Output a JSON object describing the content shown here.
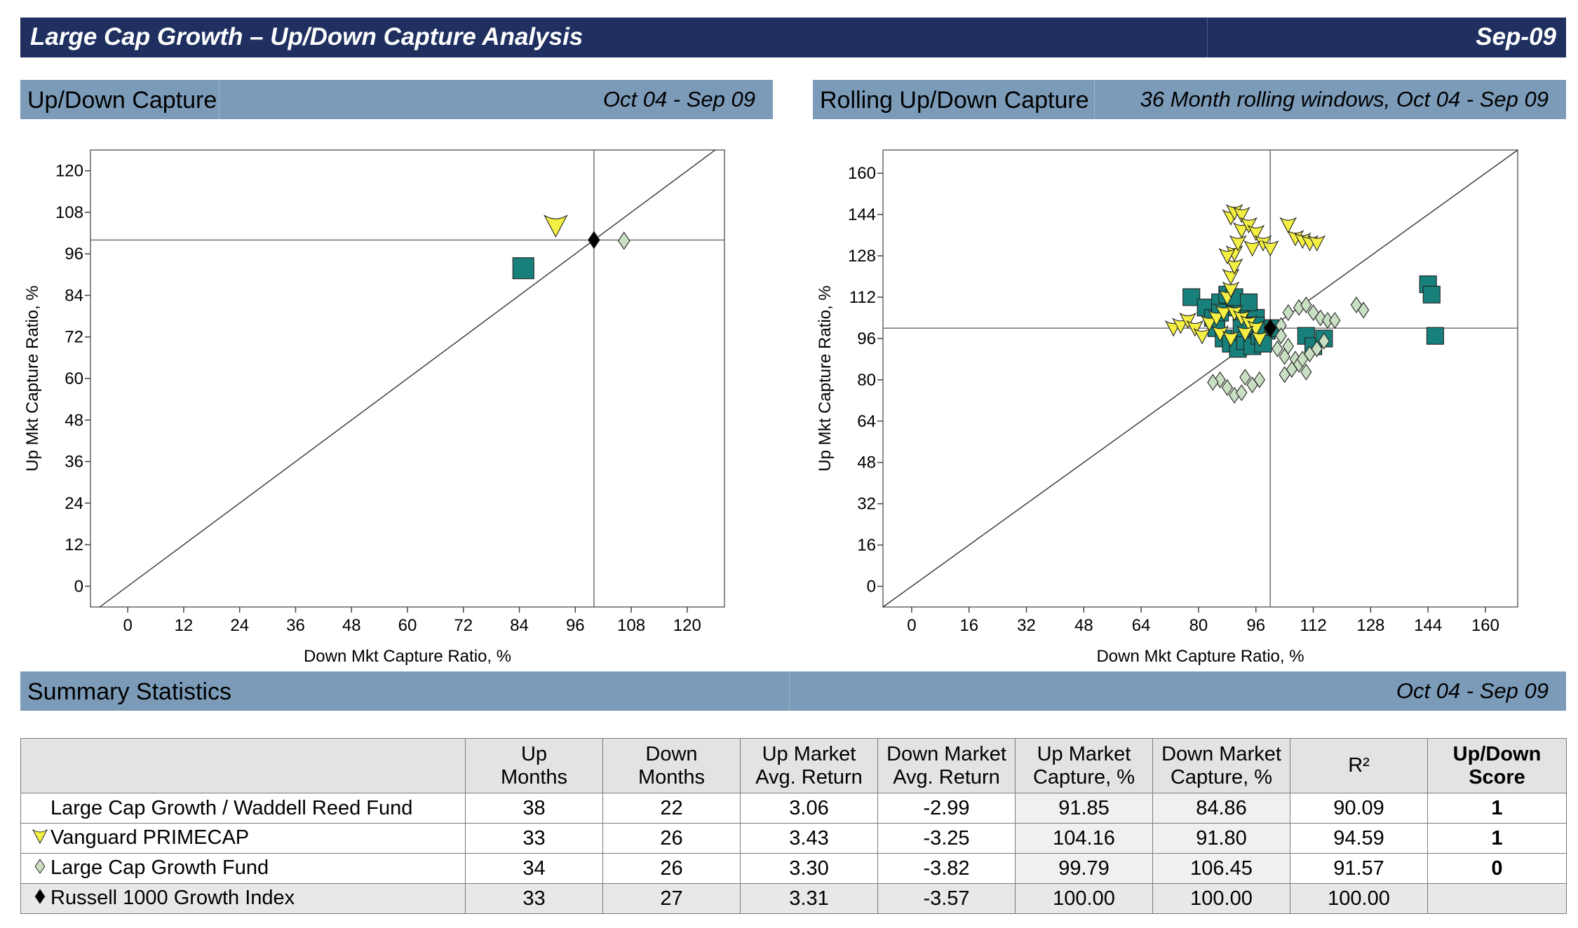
{
  "header": {
    "title": "Large Cap Growth – Up/Down Capture Analysis",
    "date": "Sep-09"
  },
  "left_section": {
    "title": "Up/Down Capture",
    "period": "Oct 04 - Sep 09"
  },
  "right_section": {
    "title": "Rolling Up/Down Capture",
    "period": "36 Month rolling windows, Oct 04 - Sep 09"
  },
  "summary_section": {
    "title": "Summary Statistics",
    "period": "Oct 04 - Sep 09"
  },
  "colors": {
    "header_bg": "#1f3060",
    "section_bg": "#7b9bb9",
    "fund": "#17807a",
    "primecap": "#f4f043",
    "growth_fund": "#c9dfc3",
    "index": "#000000"
  },
  "chart_data": [
    {
      "type": "scatter",
      "xlabel": "Down Mkt Capture Ratio, %",
      "ylabel": "Up Mkt Capture Ratio, %",
      "xlim": [
        -8,
        128
      ],
      "ylim": [
        -6,
        126
      ],
      "xticks": [
        0,
        12,
        24,
        36,
        48,
        60,
        72,
        84,
        96,
        108,
        120
      ],
      "yticks": [
        0,
        12,
        24,
        36,
        48,
        60,
        72,
        84,
        96,
        108,
        120
      ],
      "reference_lines": {
        "x": 100,
        "y": 100,
        "diagonal": true
      },
      "series": [
        {
          "marker": "square",
          "color": "#17807a",
          "points": [
            [
              84.86,
              91.85
            ]
          ]
        },
        {
          "marker": "triangle-down",
          "color": "#f4f043",
          "points": [
            [
              91.8,
              104.16
            ]
          ]
        },
        {
          "marker": "diamond",
          "color": "#c9dfc3",
          "points": [
            [
              106.45,
              99.79
            ]
          ]
        },
        {
          "marker": "diamond",
          "color": "#000000",
          "points": [
            [
              100,
              100
            ]
          ]
        }
      ]
    },
    {
      "type": "scatter",
      "xlabel": "Down Mkt Capture Ratio, %",
      "ylabel": "Up Mkt Capture Ratio, %",
      "xlim": [
        -8,
        169
      ],
      "ylim": [
        -8,
        169
      ],
      "xticks": [
        0,
        16,
        32,
        48,
        64,
        80,
        96,
        112,
        128,
        144,
        160
      ],
      "yticks": [
        0,
        16,
        32,
        48,
        64,
        80,
        96,
        112,
        128,
        144,
        160
      ],
      "reference_lines": {
        "x": 100,
        "y": 100,
        "diagonal": true
      },
      "series": [
        {
          "marker": "square",
          "color": "#17807a",
          "points": [
            [
              78,
              112
            ],
            [
              82,
              108
            ],
            [
              84,
              104
            ],
            [
              86,
              110
            ],
            [
              88,
              113
            ],
            [
              90,
              108
            ],
            [
              92,
              106
            ],
            [
              94,
              105
            ],
            [
              96,
              104
            ],
            [
              85,
              100
            ],
            [
              87,
              96
            ],
            [
              89,
              94
            ],
            [
              91,
              92
            ],
            [
              93,
              95
            ],
            [
              95,
              93
            ],
            [
              97,
              97
            ],
            [
              99,
              99
            ],
            [
              86,
              106
            ],
            [
              90,
              112
            ],
            [
              94,
              110
            ],
            [
              100,
              100
            ],
            [
              98,
              94
            ],
            [
              92,
              100
            ],
            [
              96,
              101
            ],
            [
              110,
              97
            ],
            [
              112,
              93
            ],
            [
              115,
              96
            ],
            [
              144,
              117
            ],
            [
              145,
              113
            ],
            [
              146,
              97
            ]
          ]
        },
        {
          "marker": "triangle-down",
          "color": "#f4f043",
          "points": [
            [
              73,
              100
            ],
            [
              75,
              101
            ],
            [
              77,
              103
            ],
            [
              79,
              100
            ],
            [
              81,
              97
            ],
            [
              83,
              102
            ],
            [
              85,
              104
            ],
            [
              87,
              106
            ],
            [
              88,
              112
            ],
            [
              89,
              115
            ],
            [
              89,
              120
            ],
            [
              90,
              124
            ],
            [
              90,
              129
            ],
            [
              91,
              133
            ],
            [
              92,
              138
            ],
            [
              89,
              143
            ],
            [
              90,
              145
            ],
            [
              92,
              144
            ],
            [
              94,
              140
            ],
            [
              96,
              137
            ],
            [
              98,
              133
            ],
            [
              100,
              131
            ],
            [
              107,
              135
            ],
            [
              109,
              134
            ],
            [
              111,
              133
            ],
            [
              113,
              133
            ],
            [
              105,
              140
            ],
            [
              95,
              131
            ],
            [
              88,
              128
            ],
            [
              90,
              106
            ],
            [
              92,
              104
            ],
            [
              94,
              102
            ],
            [
              96,
              100
            ],
            [
              86,
              98
            ],
            [
              89,
              96
            ],
            [
              93,
              98
            ],
            [
              97,
              96
            ]
          ]
        },
        {
          "marker": "diamond",
          "color": "#c9dfc3",
          "points": [
            [
              103,
              101
            ],
            [
              105,
              106
            ],
            [
              108,
              108
            ],
            [
              110,
              109
            ],
            [
              112,
              106
            ],
            [
              114,
              104
            ],
            [
              116,
              103
            ],
            [
              118,
              103
            ],
            [
              124,
              109
            ],
            [
              126,
              107
            ],
            [
              103,
              97
            ],
            [
              105,
              93
            ],
            [
              107,
              88
            ],
            [
              108,
              86
            ],
            [
              110,
              83
            ],
            [
              104,
              82
            ],
            [
              106,
              84
            ],
            [
              109,
              88
            ],
            [
              111,
              90
            ],
            [
              113,
              92
            ],
            [
              115,
              95
            ],
            [
              102,
              92
            ],
            [
              104,
              89
            ],
            [
              86,
              80
            ],
            [
              88,
              77
            ],
            [
              90,
              74
            ],
            [
              92,
              75
            ],
            [
              95,
              78
            ],
            [
              97,
              80
            ],
            [
              84,
              79
            ],
            [
              93,
              81
            ]
          ]
        },
        {
          "marker": "diamond",
          "color": "#000000",
          "points": [
            [
              100,
              100
            ]
          ]
        }
      ]
    }
  ],
  "table": {
    "columns": [
      "",
      "Up Months",
      "Down Months",
      "Up Market Avg. Return",
      "Down Market Avg. Return",
      "Up Market Capture, %",
      "Down Market Capture, %",
      "R²",
      "Up/Down Score"
    ],
    "header_lines": [
      [
        "",
        ""
      ],
      [
        "Up",
        "Months"
      ],
      [
        "Down",
        "Months"
      ],
      [
        "Up Market",
        "Avg. Return"
      ],
      [
        "Down Market",
        "Avg. Return"
      ],
      [
        "Up Market",
        "Capture, %"
      ],
      [
        "Down Market",
        "Capture, %"
      ],
      [
        "R²",
        ""
      ],
      [
        "Up/Down",
        "Score"
      ]
    ],
    "rows": [
      {
        "name": "Large Cap Growth / Waddell Reed Fund",
        "marker": "square",
        "up_months": "38",
        "down_months": "22",
        "up_avg": "3.06",
        "down_avg": "-2.99",
        "up_capture": "91.85",
        "down_capture": "84.86",
        "r2": "90.09",
        "score": "1"
      },
      {
        "name": "Vanguard PRIMECAP",
        "marker": "triangle-down",
        "up_months": "33",
        "down_months": "26",
        "up_avg": "3.43",
        "down_avg": "-3.25",
        "up_capture": "104.16",
        "down_capture": "91.80",
        "r2": "94.59",
        "score": "1"
      },
      {
        "name": "Large Cap Growth Fund",
        "marker": "diamond-light",
        "up_months": "34",
        "down_months": "26",
        "up_avg": "3.30",
        "down_avg": "-3.82",
        "up_capture": "99.79",
        "down_capture": "106.45",
        "r2": "91.57",
        "score": "0"
      },
      {
        "name": "Russell 1000 Growth Index",
        "marker": "diamond-black",
        "up_months": "33",
        "down_months": "27",
        "up_avg": "3.31",
        "down_avg": "-3.57",
        "up_capture": "100.00",
        "down_capture": "100.00",
        "r2": "100.00",
        "score": ""
      }
    ]
  }
}
